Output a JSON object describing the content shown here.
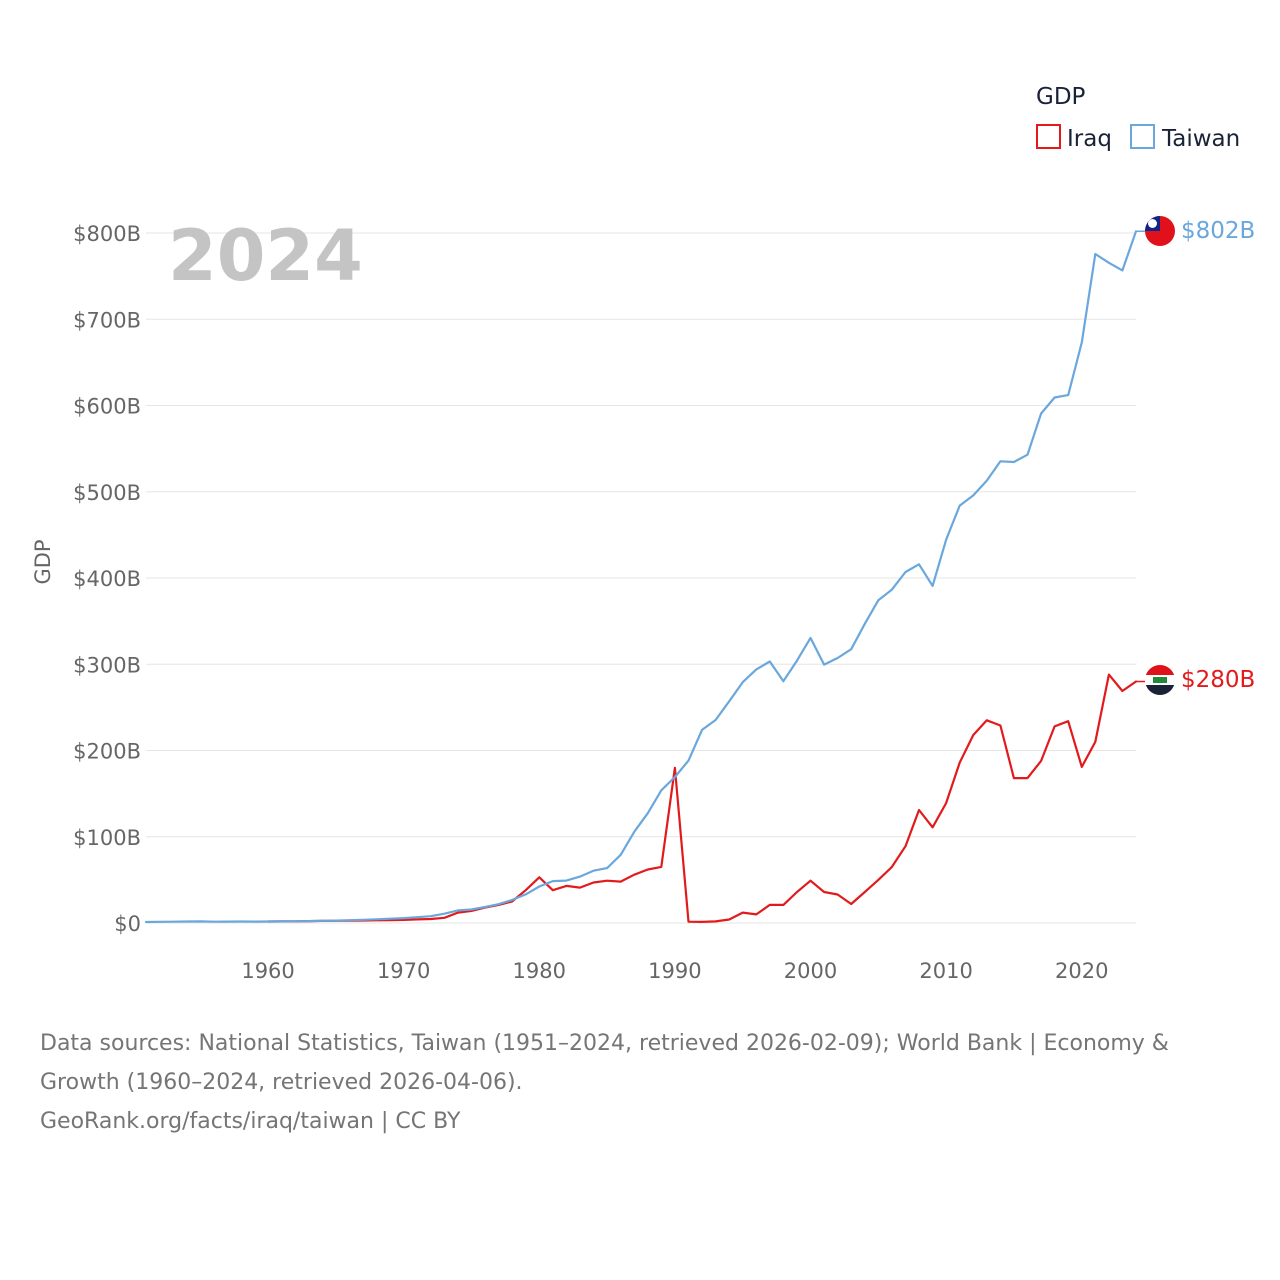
{
  "chart_data": {
    "type": "line",
    "ylabel": "GDP",
    "xlabel": "",
    "year_label": "2024",
    "legend": {
      "title": "GDP",
      "position": "top-right"
    },
    "ylim": [
      0,
      800
    ],
    "xlim": [
      1951,
      2024
    ],
    "y_ticks": [
      {
        "value": 0,
        "label": "$0"
      },
      {
        "value": 100,
        "label": "$100B"
      },
      {
        "value": 200,
        "label": "$200B"
      },
      {
        "value": 300,
        "label": "$300B"
      },
      {
        "value": 400,
        "label": "$400B"
      },
      {
        "value": 500,
        "label": "$500B"
      },
      {
        "value": 600,
        "label": "$600B"
      },
      {
        "value": 700,
        "label": "$700B"
      },
      {
        "value": 800,
        "label": "$800B"
      }
    ],
    "x_ticks": [
      {
        "value": 1960,
        "label": "1960"
      },
      {
        "value": 1970,
        "label": "1970"
      },
      {
        "value": 1980,
        "label": "1980"
      },
      {
        "value": 1990,
        "label": "1990"
      },
      {
        "value": 2000,
        "label": "2000"
      },
      {
        "value": 2010,
        "label": "2010"
      },
      {
        "value": 2020,
        "label": "2020"
      }
    ],
    "series": [
      {
        "name": "Iraq",
        "color": "#e31a1c",
        "end_label": "$280B",
        "x": [
          1960,
          1961,
          1962,
          1963,
          1964,
          1965,
          1966,
          1967,
          1968,
          1969,
          1970,
          1971,
          1972,
          1973,
          1974,
          1975,
          1976,
          1977,
          1978,
          1979,
          1980,
          1981,
          1982,
          1983,
          1984,
          1985,
          1986,
          1987,
          1988,
          1989,
          1990,
          1991,
          1992,
          1993,
          1994,
          1995,
          1996,
          1997,
          1998,
          1999,
          2000,
          2001,
          2002,
          2003,
          2004,
          2005,
          2006,
          2007,
          2008,
          2009,
          2010,
          2011,
          2012,
          2013,
          2014,
          2015,
          2016,
          2017,
          2018,
          2019,
          2020,
          2021,
          2022,
          2023,
          2024
        ],
        "values": [
          1.7,
          1.9,
          2.0,
          2.2,
          2.4,
          2.6,
          2.8,
          2.9,
          3.1,
          3.4,
          3.6,
          4.2,
          4.6,
          6.0,
          12.0,
          14.0,
          18.0,
          21.0,
          25.0,
          38.0,
          53.0,
          38.0,
          43.0,
          41.0,
          47.0,
          49.0,
          48.0,
          56.0,
          62.0,
          65.0,
          180.0,
          1.5,
          1.3,
          1.8,
          4.0,
          12.0,
          10.0,
          21.0,
          21.0,
          36.0,
          49.0,
          36.0,
          33.0,
          22.0,
          36.0,
          50.0,
          65.0,
          89.0,
          131.0,
          111.0,
          139.0,
          186.0,
          218.0,
          235.0,
          229.0,
          168.0,
          168.0,
          188.0,
          228.0,
          234.0,
          181.0,
          210.0,
          288.0,
          269.0,
          280.0
        ]
      },
      {
        "name": "Taiwan",
        "color": "#6aa7dd",
        "end_label": "$802B",
        "x": [
          1951,
          1952,
          1953,
          1954,
          1955,
          1956,
          1957,
          1958,
          1959,
          1960,
          1961,
          1962,
          1963,
          1964,
          1965,
          1966,
          1967,
          1968,
          1969,
          1970,
          1971,
          1972,
          1973,
          1974,
          1975,
          1976,
          1977,
          1978,
          1979,
          1980,
          1981,
          1982,
          1983,
          1984,
          1985,
          1986,
          1987,
          1988,
          1989,
          1990,
          1991,
          1992,
          1993,
          1994,
          1995,
          1996,
          1997,
          1998,
          1999,
          2000,
          2001,
          2002,
          2003,
          2004,
          2005,
          2006,
          2007,
          2008,
          2009,
          2010,
          2011,
          2012,
          2013,
          2014,
          2015,
          2016,
          2017,
          2018,
          2019,
          2020,
          2021,
          2022,
          2023,
          2024
        ],
        "values": [
          1.2,
          1.4,
          1.5,
          1.7,
          1.9,
          1.5,
          1.6,
          1.7,
          1.6,
          1.7,
          1.8,
          2.0,
          2.2,
          2.5,
          2.8,
          3.2,
          3.7,
          4.3,
          5.0,
          5.7,
          6.7,
          7.9,
          10.8,
          14.6,
          15.7,
          18.6,
          21.8,
          26.8,
          33.2,
          42.3,
          48.6,
          49.2,
          53.8,
          60.6,
          63.6,
          79.1,
          105.6,
          127.3,
          153.9,
          169.3,
          188.3,
          223.9,
          235.4,
          257.0,
          279.2,
          294.0,
          303.2,
          280.3,
          304.2,
          330.6,
          299.6,
          307.2,
          317.4,
          346.9,
          374.1,
          386.5,
          406.9,
          415.9,
          390.8,
          444.3,
          484.0,
          495.8,
          512.9,
          535.3,
          534.5,
          543.0,
          590.7,
          609.3,
          612.1,
          673.2,
          775.6,
          765.5,
          756.6,
          802.0
        ]
      }
    ],
    "source_lines": [
      "Data sources: National Statistics, Taiwan (1951–2024, retrieved 2026-02-09); World Bank | Economy &",
      "Growth (1960–2024, retrieved 2026-04-06).",
      "GeoRank.org/facts/iraq/taiwan | CC BY"
    ]
  }
}
